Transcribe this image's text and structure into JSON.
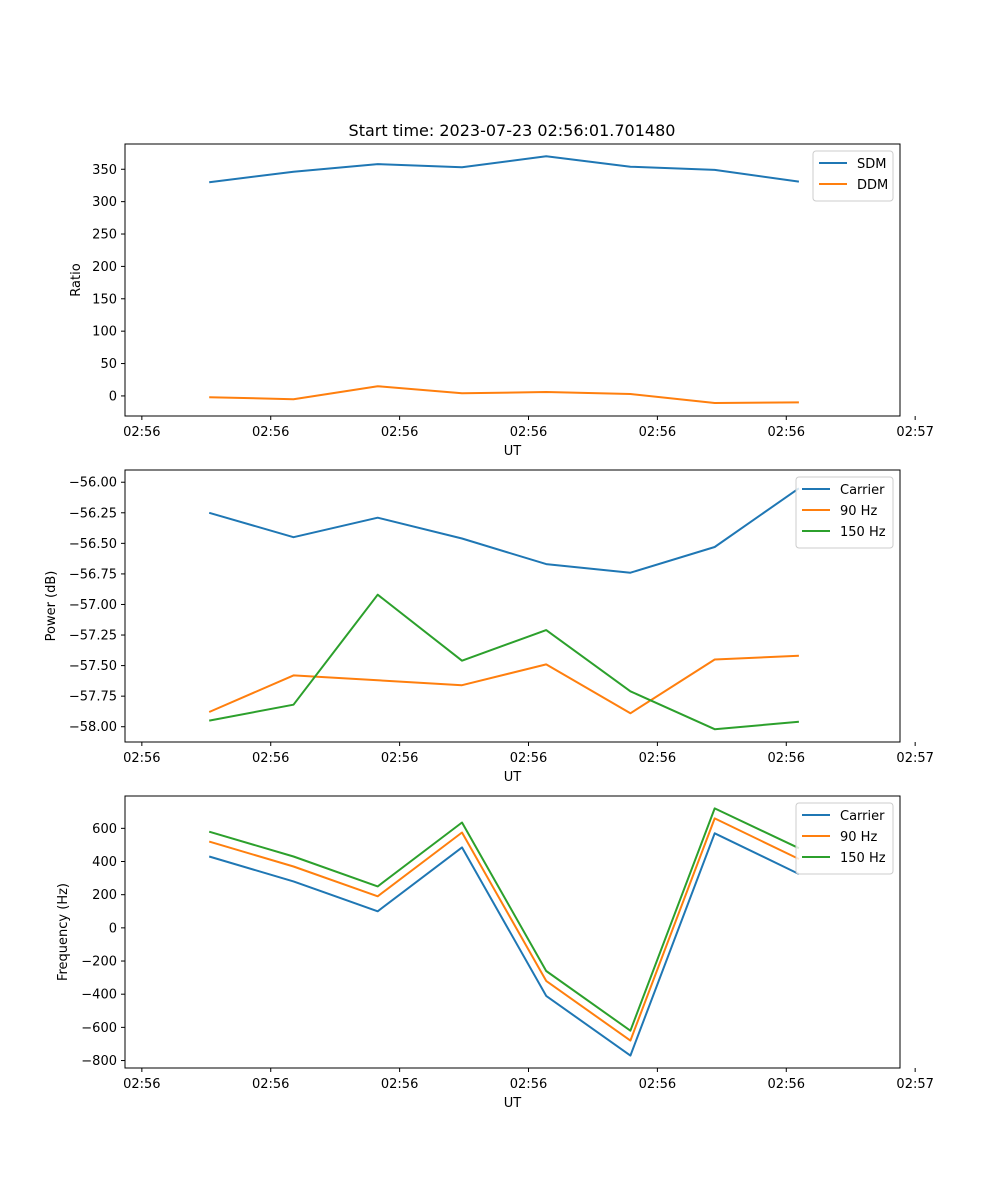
{
  "figure_title": "Start time: 2023-07-23 02:56:01.701480",
  "colors": {
    "c0": "#1f77b4",
    "c1": "#ff7f0e",
    "c2": "#2ca02c"
  },
  "chart_data": [
    {
      "type": "line",
      "title": "Start time: 2023-07-23 02:56:01.701480",
      "xlabel": "UT",
      "ylabel": "Ratio",
      "x_index": [
        1,
        2,
        3,
        4,
        5,
        6,
        7,
        8
      ],
      "xlim": [
        0,
        9.2
      ],
      "x_ticks": [
        0.2,
        1.73,
        3.26,
        4.79,
        6.32,
        7.85,
        9.38
      ],
      "x_tick_labels": [
        "02:56",
        "02:56",
        "02:56",
        "02:56",
        "02:56",
        "02:56",
        "02:57"
      ],
      "ylim": [
        -31,
        389
      ],
      "y_ticks": [
        0,
        50,
        100,
        150,
        200,
        250,
        300,
        350
      ],
      "y_tick_labels": [
        "0",
        "50",
        "100",
        "150",
        "200",
        "250",
        "300",
        "350"
      ],
      "legend_position": "top-right",
      "series": [
        {
          "name": "SDM",
          "color": "#1f77b4",
          "values": [
            330,
            346,
            358,
            353,
            370,
            354,
            349,
            331
          ]
        },
        {
          "name": "DDM",
          "color": "#ff7f0e",
          "values": [
            -2,
            -5,
            15,
            4,
            6,
            3,
            -11,
            -10
          ]
        }
      ]
    },
    {
      "type": "line",
      "title": "",
      "xlabel": "UT",
      "ylabel": "Power (dB)",
      "x_index": [
        1,
        2,
        3,
        4,
        5,
        6,
        7,
        8
      ],
      "xlim": [
        0,
        9.2
      ],
      "x_ticks": [
        0.2,
        1.73,
        3.26,
        4.79,
        6.32,
        7.85,
        9.38
      ],
      "x_tick_labels": [
        "02:56",
        "02:56",
        "02:56",
        "02:56",
        "02:56",
        "02:56",
        "02:57"
      ],
      "ylim": [
        -58.125,
        -55.9
      ],
      "y_ticks": [
        -58.0,
        -57.75,
        -57.5,
        -57.25,
        -57.0,
        -56.75,
        -56.5,
        -56.25,
        -56.0
      ],
      "y_tick_labels": [
        "−58.00",
        "−57.75",
        "−57.50",
        "−57.25",
        "−57.00",
        "−56.75",
        "−56.50",
        "−56.25",
        "−56.00"
      ],
      "legend_position": "top-right",
      "series": [
        {
          "name": "Carrier",
          "color": "#1f77b4",
          "values": [
            -56.25,
            -56.45,
            -56.29,
            -56.46,
            -56.67,
            -56.74,
            -56.53,
            -56.05
          ]
        },
        {
          "name": "90 Hz",
          "color": "#ff7f0e",
          "values": [
            -57.88,
            -57.58,
            -57.62,
            -57.66,
            -57.49,
            -57.89,
            -57.45,
            -57.42
          ]
        },
        {
          "name": "150 Hz",
          "color": "#2ca02c",
          "values": [
            -57.95,
            -57.82,
            -56.92,
            -57.46,
            -57.21,
            -57.71,
            -58.02,
            -57.96
          ]
        }
      ]
    },
    {
      "type": "line",
      "title": "",
      "xlabel": "UT",
      "ylabel": "Frequency (Hz)",
      "x_index": [
        1,
        2,
        3,
        4,
        5,
        6,
        7,
        8
      ],
      "xlim": [
        0,
        9.2
      ],
      "x_ticks": [
        0.2,
        1.73,
        3.26,
        4.79,
        6.32,
        7.85,
        9.38
      ],
      "x_tick_labels": [
        "02:56",
        "02:56",
        "02:56",
        "02:56",
        "02:56",
        "02:56",
        "02:57"
      ],
      "ylim": [
        -845,
        795
      ],
      "y_ticks": [
        -800,
        -600,
        -400,
        -200,
        0,
        200,
        400,
        600
      ],
      "y_tick_labels": [
        "−800",
        "−600",
        "−400",
        "−200",
        "0",
        "200",
        "400",
        "600"
      ],
      "legend_position": "top-right",
      "series": [
        {
          "name": "Carrier",
          "color": "#1f77b4",
          "values": [
            430,
            280,
            100,
            485,
            -410,
            -770,
            570,
            325
          ]
        },
        {
          "name": "90 Hz",
          "color": "#ff7f0e",
          "values": [
            520,
            370,
            190,
            575,
            -320,
            -680,
            660,
            415
          ]
        },
        {
          "name": "150 Hz",
          "color": "#2ca02c",
          "values": [
            580,
            430,
            250,
            635,
            -260,
            -620,
            720,
            480
          ]
        }
      ]
    }
  ]
}
